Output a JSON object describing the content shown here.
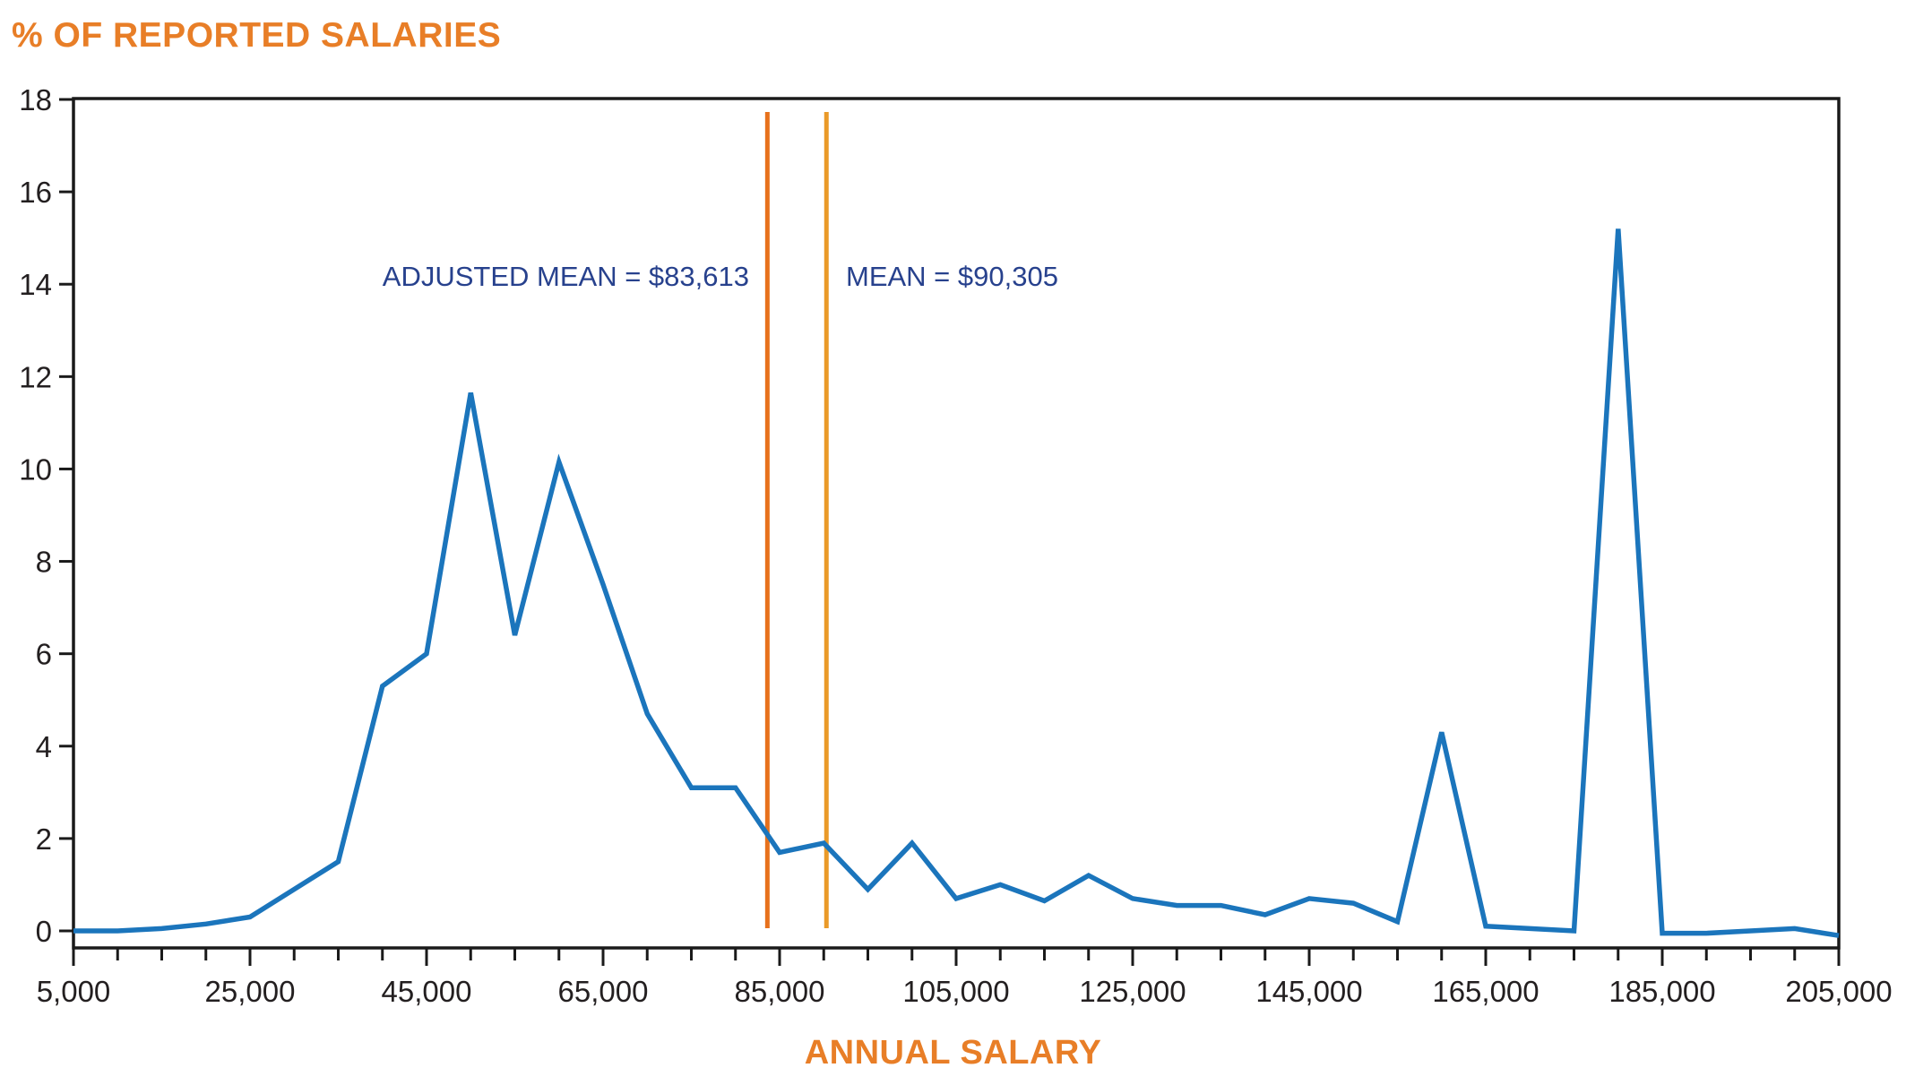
{
  "title": "% OF REPORTED SALARIES",
  "x_axis_title": "ANNUAL SALARY",
  "annotations": {
    "adjusted_mean_label": "ADJUSTED MEAN = $83,613",
    "mean_label": "MEAN = $90,305"
  },
  "colors": {
    "series_line": "#1B75BC",
    "adjusted_mean_line": "#E7711C",
    "mean_line": "#EA9A28",
    "axis": "#1A1A1A",
    "tick_text": "#231F20",
    "title_text": "#E87E27",
    "annotation_text": "#27418D"
  },
  "chart_data": {
    "type": "line",
    "title": "% OF REPORTED SALARIES",
    "xlabel": "ANNUAL SALARY",
    "ylabel": "% OF REPORTED SALARIES",
    "xlim": [
      5000,
      205000
    ],
    "ylim": [
      0,
      18
    ],
    "grid": false,
    "legend": "none",
    "x_minor_tick_interval": 5000,
    "x_major_tick_interval": 20000,
    "x_major_tick_values": [
      5000,
      25000,
      45000,
      65000,
      85000,
      105000,
      125000,
      145000,
      165000,
      185000,
      205000
    ],
    "x_tick_labels": [
      "5,000",
      "25,000",
      "45,000",
      "65,000",
      "85,000",
      "105,000",
      "125,000",
      "145,000",
      "165,000",
      "185,000",
      "205,000"
    ],
    "y_tick_values": [
      0,
      2,
      4,
      6,
      8,
      10,
      12,
      14,
      16,
      18
    ],
    "y_tick_labels": [
      "0",
      "2",
      "4",
      "6",
      "8",
      "10",
      "12",
      "14",
      "16",
      "18"
    ],
    "series": [
      {
        "name": "% of reported salaries",
        "x": [
          5000,
          10000,
          15000,
          20000,
          25000,
          30000,
          35000,
          40000,
          45000,
          50000,
          55000,
          60000,
          65000,
          70000,
          75000,
          80000,
          85000,
          90000,
          95000,
          100000,
          105000,
          110000,
          115000,
          120000,
          125000,
          130000,
          135000,
          140000,
          145000,
          150000,
          155000,
          160000,
          165000,
          170000,
          175000,
          180000,
          185000,
          190000,
          195000,
          200000,
          205000
        ],
        "y": [
          0,
          0,
          0.05,
          0.15,
          0.3,
          0.9,
          1.5,
          5.3,
          6.0,
          11.65,
          6.4,
          10.15,
          7.5,
          4.7,
          3.1,
          3.1,
          1.7,
          1.9,
          0.9,
          1.9,
          0.7,
          1.0,
          0.65,
          1.2,
          0.7,
          0.55,
          0.55,
          0.35,
          0.7,
          0.6,
          0.2,
          4.3,
          0.1,
          0.05,
          0.0,
          15.2,
          -0.05,
          -0.05,
          0.0,
          0.05,
          -0.1
        ]
      }
    ],
    "vlines": [
      {
        "name": "adjusted-mean",
        "label": "ADJUSTED MEAN = $83,613",
        "value": 83613,
        "color": "#E7711C"
      },
      {
        "name": "mean",
        "label": "MEAN = $90,305",
        "value": 90305,
        "color": "#EA9A28"
      }
    ]
  }
}
